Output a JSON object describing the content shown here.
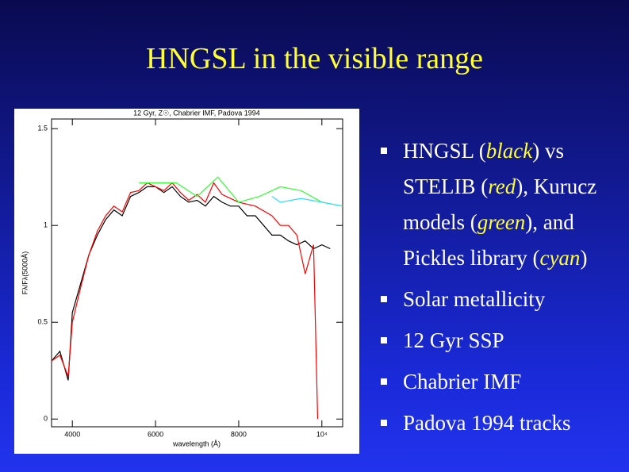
{
  "title": "HNGSL in the visible range",
  "chart_data": {
    "type": "line",
    "title": "12 Gyr, Z☉, Chabrier IMF, Padova 1994",
    "x_label": "wavelength (Å)",
    "y_label": "Fλ/Fλ(5000Å)",
    "xlim": [
      3500,
      10500
    ],
    "ylim": [
      -0.04,
      1.55
    ],
    "xticks": [
      4000,
      6000,
      8000,
      {
        "value": 10000,
        "label": "10⁴"
      }
    ],
    "yticks": [
      0,
      0.5,
      1,
      1.5
    ],
    "series": [
      {
        "color": "#000000",
        "x": [
          3500,
          3700,
          3900,
          4000,
          4200,
          4400,
          4600,
          4800,
          5000,
          5200,
          5400,
          5600,
          5800,
          6000,
          6200,
          6400,
          6600,
          6800,
          7000,
          7200,
          7400,
          7600,
          7800,
          8000,
          8200,
          8400,
          8600,
          8800,
          9000,
          9200,
          9400,
          9600,
          9800,
          10000,
          10200
        ],
        "values": [
          0.3,
          0.35,
          0.2,
          0.55,
          0.7,
          0.85,
          0.95,
          1.03,
          1.08,
          1.05,
          1.15,
          1.17,
          1.2,
          1.2,
          1.17,
          1.2,
          1.15,
          1.12,
          1.13,
          1.1,
          1.15,
          1.12,
          1.1,
          1.1,
          1.05,
          1.05,
          1.0,
          0.95,
          0.95,
          0.92,
          0.9,
          0.92,
          0.88,
          0.9,
          0.88
        ]
      },
      {
        "color": "#ff0000",
        "x": [
          3500,
          3700,
          3900,
          4000,
          4200,
          4400,
          4600,
          4800,
          5000,
          5200,
          5400,
          5600,
          5800,
          6000,
          6200,
          6400,
          6600,
          6800,
          7000,
          7200,
          7400,
          7600,
          7800,
          8000,
          8400,
          8800,
          9000,
          9200,
          9400,
          9600,
          9800,
          9900
        ],
        "values": [
          0.3,
          0.33,
          0.22,
          0.5,
          0.68,
          0.85,
          0.97,
          1.05,
          1.1,
          1.07,
          1.17,
          1.18,
          1.22,
          1.2,
          1.18,
          1.22,
          1.17,
          1.13,
          1.16,
          1.12,
          1.22,
          1.16,
          1.14,
          1.12,
          1.1,
          1.05,
          1.0,
          1.0,
          0.95,
          0.75,
          0.9,
          0.0
        ]
      },
      {
        "color": "#33ff33",
        "x": [
          5600,
          6000,
          6500,
          7000,
          7500,
          8000,
          8500,
          8800,
          9000,
          9500,
          10000,
          10500
        ],
        "values": [
          1.22,
          1.22,
          1.22,
          1.15,
          1.25,
          1.12,
          1.15,
          1.18,
          1.2,
          1.18,
          1.12,
          1.1
        ]
      },
      {
        "color": "#33ddff",
        "x": [
          8800,
          9000,
          9500,
          10000,
          10500
        ],
        "values": [
          1.15,
          1.12,
          1.14,
          1.12,
          1.1
        ]
      }
    ]
  },
  "bullets": [
    [
      "HNGSL (",
      "black",
      ") vs STELIB (",
      "red",
      "), Kurucz models (",
      "green",
      "), and Pickles library (",
      "cyan",
      ")"
    ],
    [
      "Solar metallicity"
    ],
    [
      "12 Gyr SSP"
    ],
    [
      "Chabrier IMF"
    ],
    [
      "Padova 1994 tracks"
    ]
  ]
}
